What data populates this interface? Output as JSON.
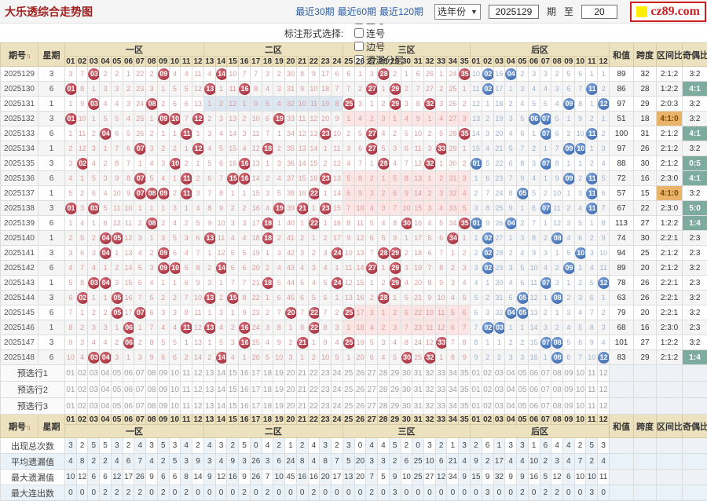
{
  "header": {
    "title": "大乐透综合走势图",
    "links": [
      "最近30期",
      "最近60期",
      "最近120期"
    ],
    "year_select": "选年份",
    "issue_from": "2025129",
    "issue_unit": "期",
    "to_label": "至",
    "issue_to": "20",
    "logo_text": "cz89.com"
  },
  "filter": {
    "label": "标注形式选择:",
    "options": [
      "不带遗漏数据",
      "重号",
      "连号",
      "边号",
      "遗漏分层"
    ]
  },
  "table": {
    "col_issue": "期号",
    "col_week": "星期",
    "zones": [
      "一区",
      "二区",
      "三区",
      "后区"
    ],
    "zone_spans": [
      12,
      12,
      11,
      12
    ],
    "front_numbers": [
      "01",
      "02",
      "03",
      "04",
      "05",
      "06",
      "07",
      "08",
      "09",
      "10",
      "11",
      "12",
      "13",
      "14",
      "15",
      "16",
      "17",
      "18",
      "19",
      "20",
      "21",
      "22",
      "23",
      "24",
      "25",
      "26",
      "27",
      "28",
      "29",
      "30",
      "31",
      "32",
      "33",
      "34",
      "35"
    ],
    "back_numbers": [
      "01",
      "02",
      "03",
      "04",
      "05",
      "06",
      "07",
      "08",
      "09",
      "10",
      "11",
      "12"
    ],
    "right_cols": [
      "和值",
      "跨度",
      "区间比",
      "奇偶比"
    ]
  },
  "prediction": {
    "labels": [
      "预选行1",
      "预选行2",
      "预选行3"
    ]
  },
  "stats_labels": [
    "出现总次数",
    "平均遗漏值",
    "最大遗漏值",
    "最大连出数"
  ],
  "colors": {
    "accent_red": "#a01f1f",
    "link_blue": "#2b5fa5",
    "header_tan": "#ece2c0",
    "front_ball": "#9c1f2e",
    "back_ball": "#2d5ea8",
    "hl_orange": "#e9b469",
    "hl_teal": "#7dab9e",
    "tint_blue": "#dce7f2",
    "tint_pink": "#fbe5e5"
  },
  "chart_data": {
    "type": "table",
    "title": "大乐透综合走势图",
    "front_omission_start": [
      3,
      7,
      0,
      2,
      2,
      1,
      22,
      2,
      0,
      4,
      4,
      11,
      4,
      0,
      10,
      7,
      7,
      3,
      2,
      30,
      8,
      9,
      17,
      6,
      6,
      1,
      3,
      0,
      2,
      1,
      6,
      26,
      1,
      24,
      0
    ],
    "back_omission_start": [
      10,
      0,
      16,
      0,
      2,
      3,
      3,
      2,
      5,
      6,
      1,
      1
    ],
    "rows": [
      {
        "issue": "2025129",
        "week": "3",
        "front": [
          3,
          9,
          14,
          28,
          35
        ],
        "back": [
          2,
          4
        ],
        "sum": 89,
        "span": 32,
        "zone_ratio": "2:1:2",
        "odd_even": "3:2",
        "zone_hl": false,
        "oe_hl": false
      },
      {
        "issue": "2025130",
        "week": "6",
        "front": [
          1,
          13,
          16,
          27,
          29
        ],
        "back": [
          2,
          11
        ],
        "sum": 86,
        "span": 28,
        "zone_ratio": "1:2:2",
        "odd_even": "4:1",
        "zone_hl": false,
        "oe_hl": true
      },
      {
        "issue": "2025131",
        "week": "1",
        "front": [
          3,
          8,
          25,
          29,
          32
        ],
        "back": [
          9,
          12
        ],
        "sum": 97,
        "span": 29,
        "zone_ratio": "2:0:3",
        "odd_even": "3:2",
        "zone_hl": false,
        "oe_hl": false
      },
      {
        "issue": "2025132",
        "week": "3",
        "front": [
          1,
          9,
          10,
          12,
          19
        ],
        "back": [
          6,
          7
        ],
        "sum": 51,
        "span": 18,
        "zone_ratio": "4:1:0",
        "odd_even": "3:2",
        "zone_hl": true,
        "oe_hl": false
      },
      {
        "issue": "2025133",
        "week": "6",
        "front": [
          4,
          11,
          23,
          27,
          35
        ],
        "back": [
          7,
          11
        ],
        "sum": 100,
        "span": 31,
        "zone_ratio": "2:1:2",
        "odd_even": "4:1",
        "zone_hl": false,
        "oe_hl": true
      },
      {
        "issue": "2025134",
        "week": "1",
        "front": [
          7,
          12,
          18,
          27,
          33
        ],
        "back": [
          9,
          10
        ],
        "sum": 97,
        "span": 26,
        "zone_ratio": "2:1:2",
        "odd_even": "3:2",
        "zone_hl": false,
        "oe_hl": false
      },
      {
        "issue": "2025135",
        "week": "3",
        "front": [
          2,
          10,
          16,
          28,
          32
        ],
        "back": [
          1,
          7
        ],
        "sum": 88,
        "span": 30,
        "zone_ratio": "2:1:2",
        "odd_even": "0:5",
        "zone_hl": false,
        "oe_hl": true
      },
      {
        "issue": "2025136",
        "week": "6",
        "front": [
          7,
          11,
          15,
          16,
          23
        ],
        "back": [
          9,
          11
        ],
        "sum": 72,
        "span": 16,
        "zone_ratio": "2:3:0",
        "odd_even": "4:1",
        "zone_hl": false,
        "oe_hl": true
      },
      {
        "issue": "2025137",
        "week": "1",
        "front": [
          7,
          8,
          9,
          11,
          22
        ],
        "back": [
          5,
          11
        ],
        "sum": 57,
        "span": 15,
        "zone_ratio": "4:1:0",
        "odd_even": "3:2",
        "zone_hl": true,
        "oe_hl": false
      },
      {
        "issue": "2025138",
        "week": "3",
        "front": [
          1,
          3,
          19,
          21,
          23
        ],
        "back": [
          7,
          11
        ],
        "sum": 67,
        "span": 22,
        "zone_ratio": "2:3:0",
        "odd_even": "5:0",
        "zone_hl": false,
        "oe_hl": true
      },
      {
        "issue": "2025139",
        "week": "6",
        "front": [
          8,
          18,
          22,
          30,
          35
        ],
        "back": [
          1,
          4
        ],
        "sum": 113,
        "span": 27,
        "zone_ratio": "1:2:2",
        "odd_even": "1:4",
        "zone_hl": false,
        "oe_hl": true
      },
      {
        "issue": "2025140",
        "week": "1",
        "front": [
          4,
          5,
          13,
          18,
          34
        ],
        "back": [
          2,
          8
        ],
        "sum": 74,
        "span": 30,
        "zone_ratio": "2:2:1",
        "odd_even": "2:3",
        "zone_hl": false,
        "oe_hl": false
      },
      {
        "issue": "2025141",
        "week": "3",
        "front": [
          4,
          9,
          24,
          28,
          29
        ],
        "back": [
          2,
          10
        ],
        "sum": 94,
        "span": 25,
        "zone_ratio": "2:1:2",
        "odd_even": "2:3",
        "zone_hl": false,
        "oe_hl": false
      },
      {
        "issue": "2025142",
        "week": "6",
        "front": [
          9,
          10,
          14,
          27,
          29
        ],
        "back": [
          2,
          9
        ],
        "sum": 89,
        "span": 20,
        "zone_ratio": "2:1:2",
        "odd_even": "3:2",
        "zone_hl": false,
        "oe_hl": false
      },
      {
        "issue": "2025143",
        "week": "1",
        "front": [
          3,
          4,
          18,
          24,
          29
        ],
        "back": [
          7,
          12
        ],
        "sum": 78,
        "span": 26,
        "zone_ratio": "2:2:1",
        "odd_even": "2:3",
        "zone_hl": false,
        "oe_hl": false
      },
      {
        "issue": "2025144",
        "week": "3",
        "front": [
          2,
          5,
          13,
          15,
          28
        ],
        "back": [
          5,
          8
        ],
        "sum": 63,
        "span": 26,
        "zone_ratio": "2:2:1",
        "odd_even": "3:2",
        "zone_hl": false,
        "oe_hl": false
      },
      {
        "issue": "2025145",
        "week": "6",
        "front": [
          5,
          7,
          20,
          22,
          25
        ],
        "back": [
          4,
          5
        ],
        "sum": 79,
        "span": 20,
        "zone_ratio": "2:2:1",
        "odd_even": "3:2",
        "zone_hl": false,
        "oe_hl": false
      },
      {
        "issue": "2025146",
        "week": "1",
        "front": [
          6,
          11,
          13,
          16,
          22
        ],
        "back": [
          2,
          3
        ],
        "sum": 68,
        "span": 16,
        "zone_ratio": "2:3:0",
        "odd_even": "2:3",
        "zone_hl": false,
        "oe_hl": false
      },
      {
        "issue": "2025147",
        "week": "3",
        "front": [
          6,
          16,
          21,
          25,
          33
        ],
        "back": [
          7,
          8
        ],
        "sum": 101,
        "span": 27,
        "zone_ratio": "1:2:2",
        "odd_even": "3:2",
        "zone_hl": false,
        "oe_hl": false
      },
      {
        "issue": "2025148",
        "week": "6",
        "front": [
          3,
          4,
          14,
          30,
          32
        ],
        "back": [
          8,
          12
        ],
        "sum": 83,
        "span": 29,
        "zone_ratio": "2:1:2",
        "odd_even": "1:4",
        "zone_hl": false,
        "oe_hl": true
      }
    ],
    "stats": {
      "occurrence": {
        "front": [
          3,
          2,
          5,
          5,
          3,
          2,
          4,
          3,
          5,
          3,
          4,
          2,
          4,
          3,
          2,
          5,
          0,
          4,
          2,
          1,
          2,
          4,
          3,
          2,
          3,
          0,
          4,
          4,
          5,
          2,
          0,
          3,
          2,
          1,
          3
        ],
        "back": [
          2,
          6,
          1,
          3,
          3,
          1,
          6,
          4,
          4,
          2,
          5,
          3
        ]
      },
      "avg_omission": {
        "front": [
          4,
          8,
          2,
          2,
          4,
          6,
          7,
          4,
          2,
          5,
          3,
          9,
          3,
          4,
          9,
          3,
          26,
          3,
          6,
          24,
          8,
          4,
          8,
          7,
          5,
          20,
          3,
          3,
          2,
          6,
          25,
          10,
          6,
          21,
          4
        ],
        "back": [
          9,
          2,
          17,
          4,
          4,
          10,
          2,
          3,
          4,
          7,
          2,
          4
        ]
      },
      "max_omission": {
        "front": [
          10,
          12,
          6,
          6,
          12,
          17,
          26,
          9,
          6,
          6,
          8,
          14,
          9,
          12,
          16,
          9,
          26,
          7,
          10,
          45,
          16,
          16,
          20,
          17,
          13,
          20,
          7,
          5,
          9,
          10,
          25,
          27,
          12,
          34,
          9
        ],
        "back": [
          15,
          9,
          32,
          9,
          9,
          16,
          5,
          12,
          6,
          10,
          10,
          11
        ]
      },
      "max_streak": {
        "front": [
          0,
          0,
          0,
          2,
          2,
          2,
          2,
          0,
          2,
          0,
          2,
          0,
          0,
          0,
          0,
          2,
          0,
          2,
          0,
          0,
          0,
          2,
          0,
          0,
          0,
          0,
          2,
          0,
          3,
          0,
          0,
          0,
          0,
          0,
          0
        ],
        "back": [
          0,
          3,
          0,
          0,
          2,
          0,
          2,
          2,
          0,
          0,
          3,
          0
        ]
      }
    }
  }
}
